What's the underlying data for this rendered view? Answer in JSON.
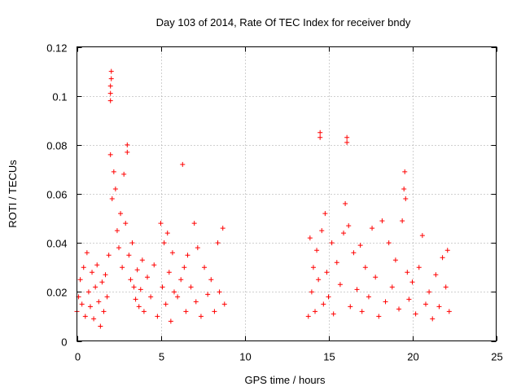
{
  "chart_data": {
    "type": "scatter",
    "title": "Day 103 of 2014, Rate Of TEC Index for receiver bndy",
    "xlabel": "GPS time / hours",
    "ylabel": "ROTI / TECUs",
    "xlim": [
      0,
      25
    ],
    "ylim": [
      0,
      0.12
    ],
    "xticks": [
      0,
      5,
      10,
      15,
      20,
      25
    ],
    "yticks": [
      0,
      0.02,
      0.04,
      0.06,
      0.08,
      0.1,
      0.12
    ],
    "xtick_labels": [
      "0",
      "5",
      "10",
      "15",
      "20",
      "25"
    ],
    "ytick_labels": [
      "0",
      "0.02",
      "0.04",
      "0.06",
      "0.08",
      "0.1",
      "0.12"
    ],
    "grid": true,
    "marker": "+",
    "color": "#ff0000",
    "series": [
      {
        "name": "ROTI",
        "points": [
          [
            0.0,
            0.012
          ],
          [
            0.1,
            0.018
          ],
          [
            0.2,
            0.025
          ],
          [
            0.3,
            0.015
          ],
          [
            0.4,
            0.03
          ],
          [
            0.5,
            0.01
          ],
          [
            0.6,
            0.036
          ],
          [
            0.7,
            0.02
          ],
          [
            0.8,
            0.014
          ],
          [
            0.9,
            0.028
          ],
          [
            1.0,
            0.009
          ],
          [
            1.1,
            0.022
          ],
          [
            1.2,
            0.031
          ],
          [
            1.3,
            0.016
          ],
          [
            1.4,
            0.006
          ],
          [
            1.5,
            0.024
          ],
          [
            1.6,
            0.012
          ],
          [
            1.7,
            0.027
          ],
          [
            1.8,
            0.018
          ],
          [
            1.9,
            0.035
          ],
          [
            2.0,
            0.098
          ],
          [
            2.0,
            0.101
          ],
          [
            2.0,
            0.104
          ],
          [
            2.05,
            0.107
          ],
          [
            2.05,
            0.11
          ],
          [
            2.0,
            0.076
          ],
          [
            2.1,
            0.058
          ],
          [
            2.2,
            0.069
          ],
          [
            2.3,
            0.062
          ],
          [
            2.4,
            0.045
          ],
          [
            2.5,
            0.038
          ],
          [
            2.6,
            0.052
          ],
          [
            2.7,
            0.03
          ],
          [
            2.8,
            0.068
          ],
          [
            2.9,
            0.048
          ],
          [
            3.0,
            0.08
          ],
          [
            3.0,
            0.077
          ],
          [
            3.1,
            0.035
          ],
          [
            3.2,
            0.025
          ],
          [
            3.3,
            0.04
          ],
          [
            3.4,
            0.022
          ],
          [
            3.5,
            0.017
          ],
          [
            3.6,
            0.029
          ],
          [
            3.7,
            0.014
          ],
          [
            3.8,
            0.021
          ],
          [
            3.9,
            0.033
          ],
          [
            4.0,
            0.012
          ],
          [
            4.2,
            0.026
          ],
          [
            4.4,
            0.018
          ],
          [
            4.6,
            0.031
          ],
          [
            4.8,
            0.01
          ],
          [
            5.0,
            0.048
          ],
          [
            5.1,
            0.022
          ],
          [
            5.2,
            0.04
          ],
          [
            5.3,
            0.015
          ],
          [
            5.4,
            0.044
          ],
          [
            5.5,
            0.028
          ],
          [
            5.6,
            0.008
          ],
          [
            5.7,
            0.036
          ],
          [
            5.8,
            0.02
          ],
          [
            6.0,
            0.018
          ],
          [
            6.2,
            0.025
          ],
          [
            6.3,
            0.072
          ],
          [
            6.4,
            0.03
          ],
          [
            6.5,
            0.012
          ],
          [
            6.6,
            0.035
          ],
          [
            6.8,
            0.022
          ],
          [
            7.0,
            0.048
          ],
          [
            7.1,
            0.016
          ],
          [
            7.2,
            0.038
          ],
          [
            7.4,
            0.01
          ],
          [
            7.6,
            0.03
          ],
          [
            7.8,
            0.019
          ],
          [
            8.0,
            0.025
          ],
          [
            8.2,
            0.012
          ],
          [
            8.4,
            0.04
          ],
          [
            8.5,
            0.02
          ],
          [
            8.7,
            0.046
          ],
          [
            8.8,
            0.015
          ],
          [
            13.8,
            0.01
          ],
          [
            13.9,
            0.042
          ],
          [
            14.0,
            0.02
          ],
          [
            14.1,
            0.03
          ],
          [
            14.2,
            0.012
          ],
          [
            14.3,
            0.037
          ],
          [
            14.4,
            0.025
          ],
          [
            14.5,
            0.085
          ],
          [
            14.5,
            0.083
          ],
          [
            14.6,
            0.045
          ],
          [
            14.7,
            0.015
          ],
          [
            14.8,
            0.052
          ],
          [
            14.9,
            0.028
          ],
          [
            15.0,
            0.018
          ],
          [
            15.2,
            0.04
          ],
          [
            15.3,
            0.011
          ],
          [
            15.5,
            0.032
          ],
          [
            15.7,
            0.023
          ],
          [
            15.9,
            0.044
          ],
          [
            16.0,
            0.056
          ],
          [
            16.1,
            0.083
          ],
          [
            16.1,
            0.081
          ],
          [
            16.2,
            0.047
          ],
          [
            16.3,
            0.014
          ],
          [
            16.5,
            0.036
          ],
          [
            16.7,
            0.021
          ],
          [
            16.9,
            0.039
          ],
          [
            17.0,
            0.012
          ],
          [
            17.2,
            0.03
          ],
          [
            17.4,
            0.018
          ],
          [
            17.6,
            0.046
          ],
          [
            17.8,
            0.026
          ],
          [
            18.0,
            0.01
          ],
          [
            18.2,
            0.049
          ],
          [
            18.4,
            0.016
          ],
          [
            18.6,
            0.04
          ],
          [
            18.8,
            0.022
          ],
          [
            19.0,
            0.033
          ],
          [
            19.2,
            0.013
          ],
          [
            19.4,
            0.049
          ],
          [
            19.5,
            0.062
          ],
          [
            19.55,
            0.069
          ],
          [
            19.6,
            0.058
          ],
          [
            19.7,
            0.028
          ],
          [
            19.8,
            0.017
          ],
          [
            20.0,
            0.024
          ],
          [
            20.2,
            0.011
          ],
          [
            20.4,
            0.03
          ],
          [
            20.6,
            0.043
          ],
          [
            20.8,
            0.015
          ],
          [
            21.0,
            0.02
          ],
          [
            21.2,
            0.009
          ],
          [
            21.4,
            0.027
          ],
          [
            21.6,
            0.014
          ],
          [
            21.8,
            0.034
          ],
          [
            22.0,
            0.022
          ],
          [
            22.1,
            0.037
          ],
          [
            22.2,
            0.012
          ]
        ]
      }
    ]
  }
}
